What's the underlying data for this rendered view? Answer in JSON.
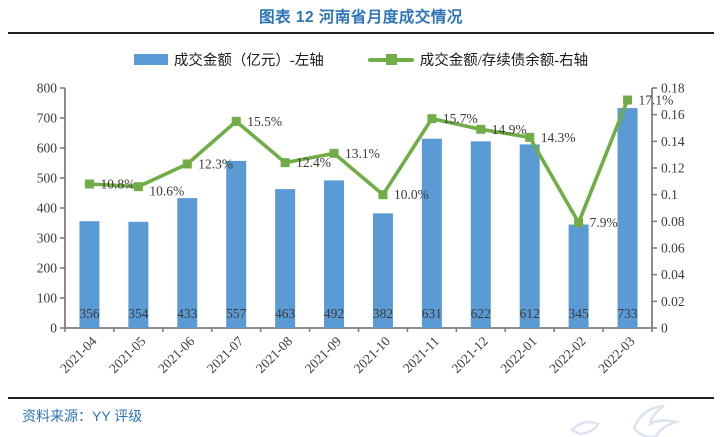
{
  "page": {
    "title": "图表 12 河南省月度成交情况"
  },
  "legend": {
    "bar_label": "成交金额（亿元）-左轴",
    "line_label": "成交金额/存续债余额-右轴"
  },
  "footer": {
    "source": "资料来源：YY 评级"
  },
  "colors": {
    "bar": "#5B9BD5",
    "line": "#70AD47",
    "marker": "#70AD47",
    "title_blue": "#2E74B5",
    "source_blue": "#2E74B5",
    "axis_gray": "#7F7F7F",
    "label_dark": "#3A3A3A",
    "watermark": "#DCE4F2"
  },
  "chart_data": {
    "type": "bar",
    "title": "图表 12 河南省月度成交情况",
    "xlabel": "",
    "ylabel_left": "成交金额（亿元）",
    "ylabel_right": "成交金额/存续债余额",
    "categories": [
      "2021-04",
      "2021-05",
      "2021-06",
      "2021-07",
      "2021-08",
      "2021-09",
      "2021-10",
      "2021-11",
      "2021-12",
      "2022-01",
      "2022-02",
      "2022-03"
    ],
    "series": [
      {
        "name": "成交金额（亿元）-左轴",
        "kind": "bar",
        "axis": "left",
        "values": [
          356,
          354,
          433,
          557,
          463,
          492,
          382,
          631,
          622,
          612,
          345,
          733
        ],
        "value_labels": [
          "356",
          "354",
          "433",
          "557",
          "463",
          "492",
          "382",
          "631",
          "622",
          "612",
          "345",
          "733"
        ]
      },
      {
        "name": "成交金额/存续债余额-右轴",
        "kind": "line",
        "axis": "right",
        "values": [
          0.108,
          0.106,
          0.123,
          0.155,
          0.124,
          0.131,
          0.1,
          0.157,
          0.149,
          0.143,
          0.079,
          0.171
        ],
        "point_labels": [
          "10.8%",
          "10.6%",
          "12.3%",
          "15.5%",
          "12.4%",
          "13.1%",
          "10.0%",
          "15.7%",
          "14.9%",
          "14.3%",
          "7.9%",
          "17.1%"
        ]
      }
    ],
    "left_axis": {
      "min": 0,
      "max": 800,
      "step": 100
    },
    "right_axis": {
      "min": 0,
      "max": 0.18,
      "step": 0.02
    },
    "legend_position": "top",
    "grid": false
  }
}
